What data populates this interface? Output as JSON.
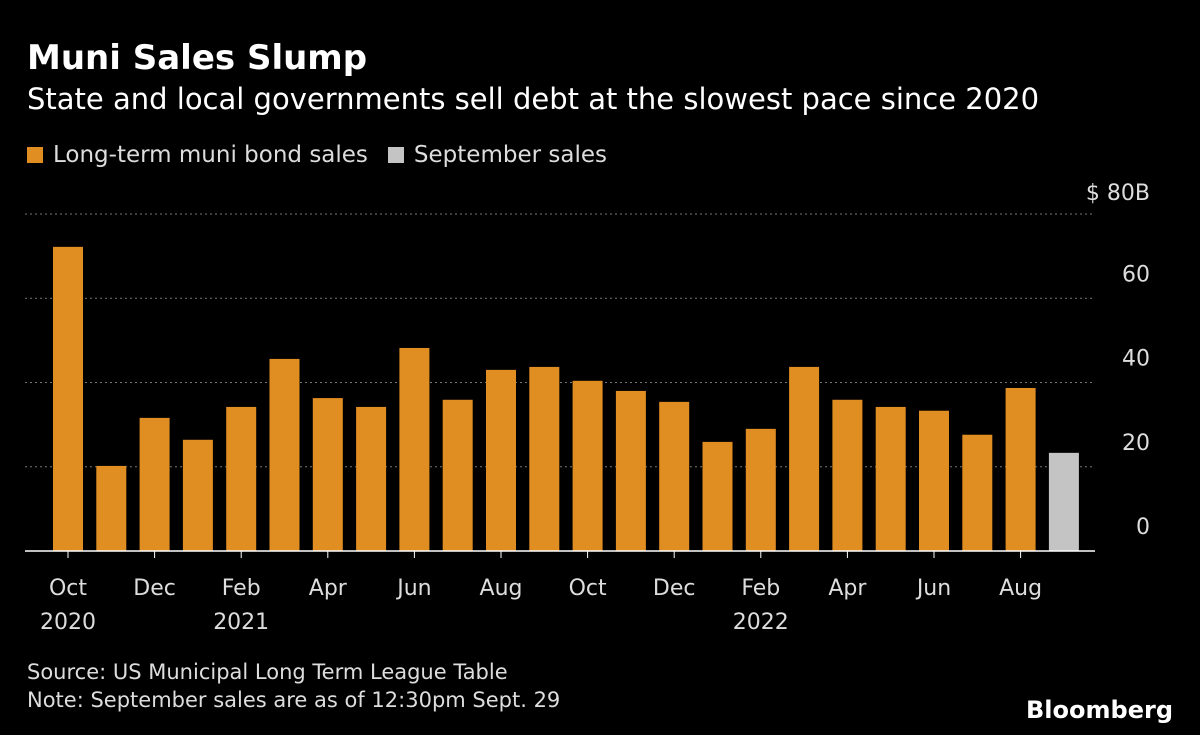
{
  "title": "Muni Sales Slump",
  "subtitle": "State and local governments sell debt at the slowest pace since 2020",
  "source": "Source: US Municipal Long Term League Table",
  "note": "Note: September sales are as of 12:30pm Sept. 29",
  "logo": "Bloomberg",
  "colors": {
    "main": "#e08d22",
    "september": "#c4c4c4",
    "background": "#000000"
  },
  "chart_data": {
    "type": "bar",
    "legend": [
      {
        "name": "Long-term muni bond sales",
        "color": "#e08d22"
      },
      {
        "name": "September sales",
        "color": "#c4c4c4"
      }
    ],
    "legend_position": "top-left",
    "categories": [
      "Oct 2020",
      "Nov 2020",
      "Dec 2020",
      "Jan 2021",
      "Feb 2021",
      "Mar 2021",
      "Apr 2021",
      "May 2021",
      "Jun 2021",
      "Jul 2021",
      "Aug 2021",
      "Sep 2021",
      "Oct 2021",
      "Nov 2021",
      "Dec 2021",
      "Jan 2022",
      "Feb 2022",
      "Mar 2022",
      "Apr 2022",
      "May 2022",
      "Jun 2022",
      "Jul 2022",
      "Aug 2022",
      "Sep 2022"
    ],
    "values": [
      72.2,
      20.2,
      31.6,
      26.4,
      34.2,
      45.6,
      36.3,
      34.2,
      48.2,
      35.9,
      43.0,
      43.7,
      40.4,
      38.0,
      35.4,
      25.9,
      29.0,
      43.7,
      35.9,
      34.2,
      33.3,
      27.6,
      38.7,
      23.3
    ],
    "highlight_index": 23,
    "ylim": [
      0,
      80
    ],
    "yticks": [
      {
        "v": 0,
        "label": "0"
      },
      {
        "v": 20,
        "label": "20"
      },
      {
        "v": 40,
        "label": "40"
      },
      {
        "v": 60,
        "label": "60"
      },
      {
        "v": 80,
        "label": "$ 80B"
      }
    ],
    "xticks": [
      {
        "i": 0,
        "label": "Oct",
        "year": "2020"
      },
      {
        "i": 2,
        "label": "Dec"
      },
      {
        "i": 4,
        "label": "Feb",
        "year": "2021"
      },
      {
        "i": 6,
        "label": "Apr"
      },
      {
        "i": 8,
        "label": "Jun"
      },
      {
        "i": 10,
        "label": "Aug"
      },
      {
        "i": 12,
        "label": "Oct"
      },
      {
        "i": 14,
        "label": "Dec"
      },
      {
        "i": 16,
        "label": "Feb",
        "year": "2022"
      },
      {
        "i": 18,
        "label": "Apr"
      },
      {
        "i": 20,
        "label": "Jun"
      },
      {
        "i": 22,
        "label": "Aug"
      }
    ],
    "grid": true,
    "axis_side": "right"
  }
}
